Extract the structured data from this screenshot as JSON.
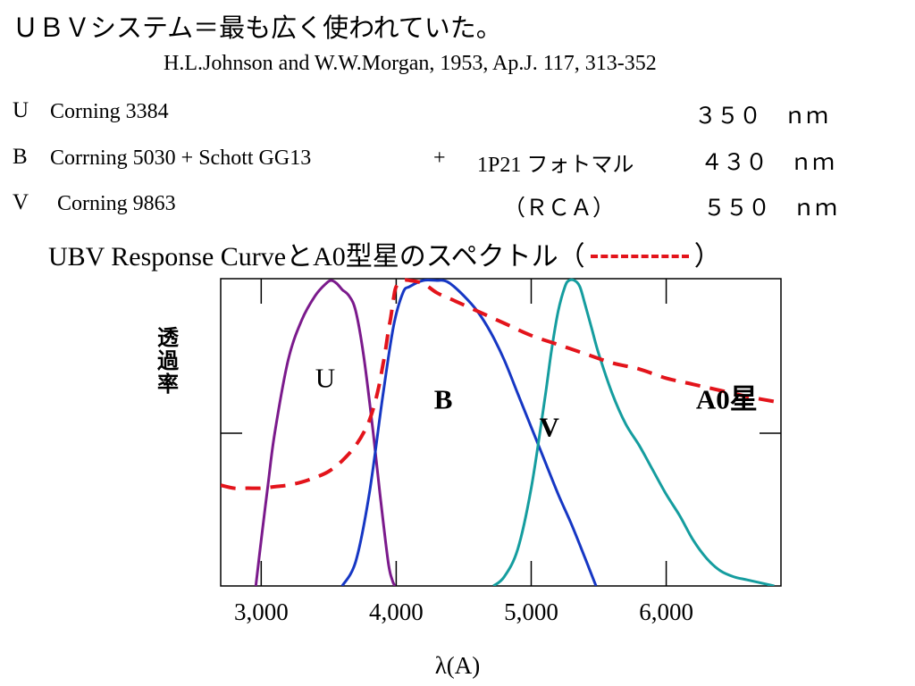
{
  "title": "ＵＢＶシステム＝最も広く使われていた。",
  "citation": "H.L.Johnson and W.W.Morgan, 1953, Ap.J. 117, 313-352",
  "filters": [
    {
      "band": "U",
      "glass": "Corning 3384",
      "extra": "",
      "detector": "",
      "wavelength": "３５０　ｎｍ"
    },
    {
      "band": "B",
      "glass": "Corrning 5030 + Schott GG13",
      "extra": "+",
      "detector": "1P21 フォトマル",
      "wavelength": "４３０　ｎｍ"
    },
    {
      "band": "V",
      "glass": "Corning 9863",
      "extra": "",
      "detector": "（ＲＣＡ）",
      "wavelength": "５５０　ｎｍ"
    }
  ],
  "chart_title": {
    "before": "UBV Response Curveと",
    "star": "A0",
    "after": "型星のスペクトル（",
    "close": "）"
  },
  "colors": {
    "U": "#7b1a8c",
    "B": "#1637c4",
    "V": "#159d9f",
    "A0": "#e3141b"
  },
  "chart_data": {
    "type": "line",
    "xlabel": "λ(A)",
    "ylabel": "透過率",
    "xlim": [
      2700,
      6850
    ],
    "ylim": [
      0,
      1
    ],
    "xticks": [
      3000,
      4000,
      5000,
      6000
    ],
    "xtick_labels": [
      "3,000",
      "4,000",
      "5,000",
      "6,000"
    ],
    "grid": false,
    "series": [
      {
        "name": "U",
        "color": "#7b1a8c",
        "style": "solid",
        "x": [
          2960,
          3000,
          3050,
          3100,
          3200,
          3300,
          3400,
          3480,
          3520,
          3560,
          3600,
          3650,
          3700,
          3760,
          3830,
          3880,
          3940,
          3970,
          3990
        ],
        "y": [
          0.0,
          0.15,
          0.33,
          0.5,
          0.74,
          0.87,
          0.95,
          0.99,
          1.0,
          0.99,
          0.97,
          0.95,
          0.9,
          0.75,
          0.5,
          0.3,
          0.08,
          0.02,
          0.0
        ]
      },
      {
        "name": "B",
        "color": "#1637c4",
        "style": "solid",
        "x": [
          3600,
          3700,
          3800,
          3900,
          3980,
          4050,
          4100,
          4200,
          4300,
          4350,
          4400,
          4500,
          4600,
          4700,
          4800,
          4900,
          5000,
          5100,
          5200,
          5300,
          5400,
          5480
        ],
        "y": [
          0.0,
          0.08,
          0.3,
          0.62,
          0.85,
          0.96,
          0.98,
          1.0,
          1.0,
          1.0,
          0.99,
          0.95,
          0.9,
          0.83,
          0.74,
          0.63,
          0.52,
          0.41,
          0.3,
          0.2,
          0.09,
          0.0
        ]
      },
      {
        "name": "V",
        "color": "#159d9f",
        "style": "solid",
        "x": [
          4720,
          4800,
          4900,
          5000,
          5100,
          5150,
          5200,
          5250,
          5280,
          5320,
          5360,
          5400,
          5450,
          5500,
          5600,
          5700,
          5800,
          5900,
          6000,
          6100,
          6200,
          6300,
          6400,
          6500,
          6600,
          6700,
          6800
        ],
        "y": [
          0.0,
          0.03,
          0.12,
          0.32,
          0.61,
          0.77,
          0.9,
          0.98,
          1.0,
          1.0,
          0.98,
          0.92,
          0.84,
          0.76,
          0.63,
          0.53,
          0.46,
          0.38,
          0.3,
          0.23,
          0.15,
          0.09,
          0.05,
          0.03,
          0.02,
          0.01,
          0.0
        ]
      },
      {
        "name": "A0星",
        "color": "#e3141b",
        "style": "dashed",
        "x": [
          2700,
          2800,
          2900,
          3000,
          3100,
          3200,
          3300,
          3400,
          3500,
          3600,
          3700,
          3780,
          3830,
          3870,
          3900,
          3920,
          3940,
          3960,
          3980,
          4000,
          4050,
          4100,
          4200,
          4300,
          4400,
          4600,
          4800,
          5000,
          5200,
          5400,
          5600,
          5800,
          6000,
          6200,
          6400,
          6600,
          6850
        ],
        "y": [
          0.33,
          0.32,
          0.32,
          0.32,
          0.325,
          0.33,
          0.34,
          0.355,
          0.375,
          0.41,
          0.46,
          0.52,
          0.58,
          0.65,
          0.72,
          0.77,
          0.83,
          0.88,
          0.94,
          0.98,
          1.0,
          1.0,
          0.99,
          0.96,
          0.94,
          0.9,
          0.86,
          0.82,
          0.79,
          0.76,
          0.73,
          0.71,
          0.68,
          0.66,
          0.64,
          0.62,
          0.6
        ]
      }
    ],
    "annotations": [
      {
        "text": "U",
        "x": 3400,
        "y": 0.65,
        "weight": "normal"
      },
      {
        "text": "B",
        "x": 4280,
        "y": 0.58,
        "weight": "bold"
      },
      {
        "text": "V",
        "x": 5060,
        "y": 0.49,
        "weight": "bold"
      },
      {
        "text": "A0星",
        "x": 6220,
        "y": 0.58,
        "weight": "bold"
      }
    ]
  }
}
